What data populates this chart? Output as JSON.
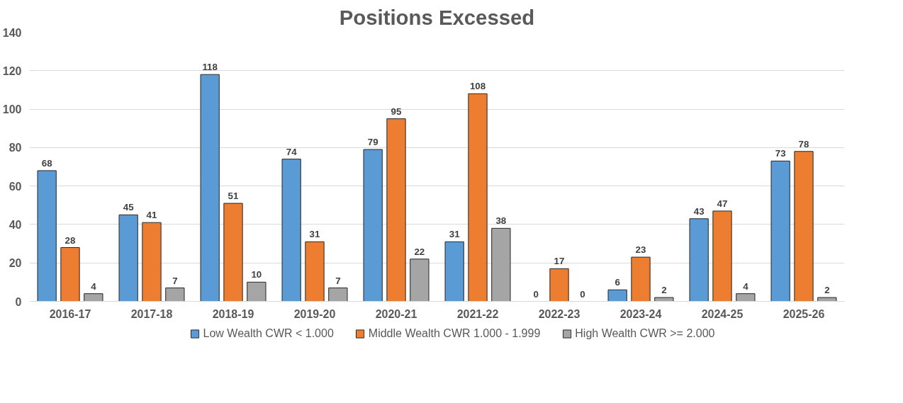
{
  "chart_data": {
    "type": "bar",
    "title": "Positions Excessed",
    "categories": [
      "2016-17",
      "2017-18",
      "2018-19",
      "2019-20",
      "2020-21",
      "2021-22",
      "2022-23",
      "2023-24",
      "2024-25",
      "2025-26"
    ],
    "series": [
      {
        "name": "Low Wealth CWR < 1.000",
        "color": "#5b9bd5",
        "values": [
          68,
          45,
          118,
          74,
          79,
          31,
          0,
          6,
          43,
          73
        ]
      },
      {
        "name": "Middle Wealth CWR 1.000 - 1.999",
        "color": "#ed7d31",
        "values": [
          28,
          41,
          51,
          31,
          95,
          108,
          17,
          23,
          47,
          78
        ]
      },
      {
        "name": "High Wealth CWR >= 2.000",
        "color": "#a5a5a5",
        "values": [
          4,
          7,
          10,
          7,
          22,
          38,
          0,
          2,
          4,
          2
        ]
      }
    ],
    "ylim": [
      0,
      140
    ],
    "yticks": [
      0,
      20,
      40,
      60,
      80,
      100,
      120,
      140
    ],
    "grid": "y",
    "legend": "bottom",
    "data_labels": true
  }
}
